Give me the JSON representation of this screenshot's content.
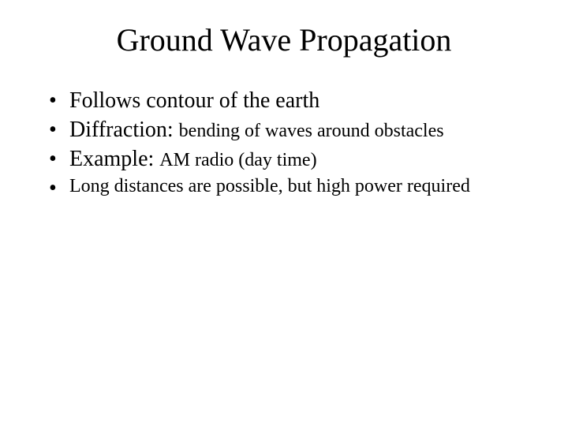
{
  "title": "Ground Wave Propagation",
  "bullets": {
    "b1": {
      "main": "Follows contour of the earth"
    },
    "b2": {
      "main": "Diffraction: ",
      "sub": "bending of waves around obstacles"
    },
    "b3": {
      "main": "Example: ",
      "sub": "AM radio (day time)"
    },
    "b4": {
      "main": "Long distances are possible, but high power required"
    }
  }
}
